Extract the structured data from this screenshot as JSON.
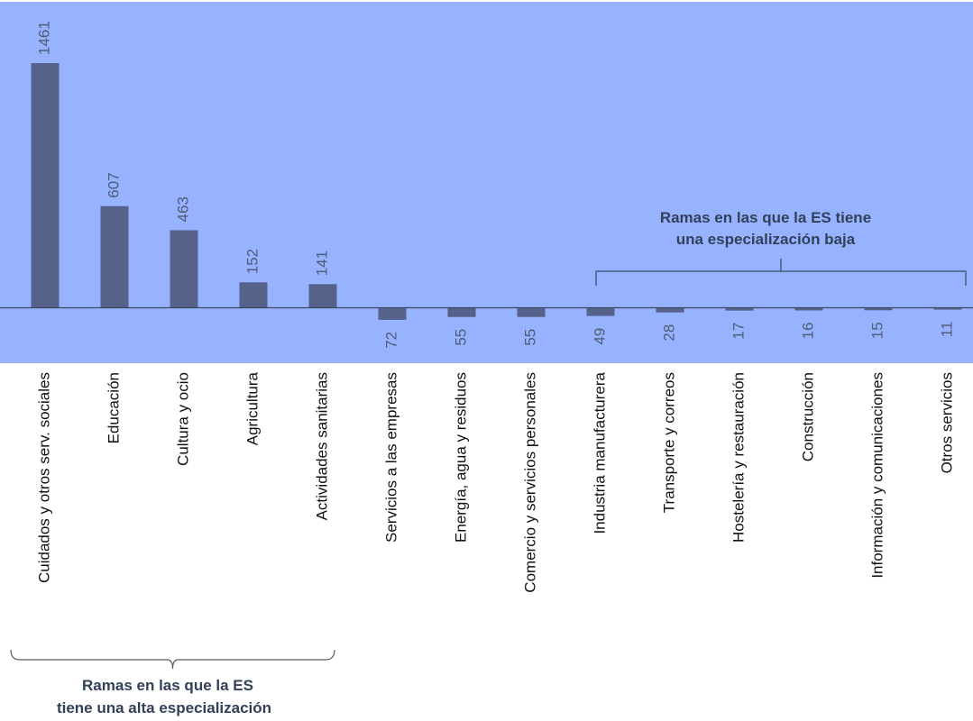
{
  "chart_data": {
    "type": "bar",
    "categories": [
      "Cuidados y otros serv. sociales",
      "Educación",
      "Cultura y ocio",
      "Agricultura",
      "Actividades sanitarias",
      "Servicios a las empresas",
      "Energía, agua y residuos",
      "Comercio y servicios personales",
      "Industria manufacturera",
      "Transporte y correos",
      "Hostelería y restauración",
      "Construcción",
      "Información y comunicaciones",
      "Otros servicios"
    ],
    "values": [
      1461,
      607,
      463,
      152,
      141,
      -72,
      -55,
      -55,
      -49,
      -28,
      -17,
      -16,
      -15,
      -11
    ],
    "labels": [
      "1461",
      "607",
      "463",
      "152",
      "141",
      "72",
      "55",
      "55",
      "49",
      "28",
      "17",
      "16",
      "15",
      "11"
    ],
    "colors": {
      "background": "#97b3ff",
      "bar": "#56628a",
      "axis": "#3a4660"
    },
    "annotations": {
      "high": {
        "line1": "Ramas en las que la ES",
        "line2": "tiene una alta especialización",
        "from_category": 0,
        "to_category": 4
      },
      "low": {
        "line1": "Ramas en las que la ES tiene",
        "line2": "una especialización baja",
        "from_category": 8,
        "to_category": 13
      }
    },
    "title": "",
    "xlabel": "",
    "ylabel": ""
  }
}
